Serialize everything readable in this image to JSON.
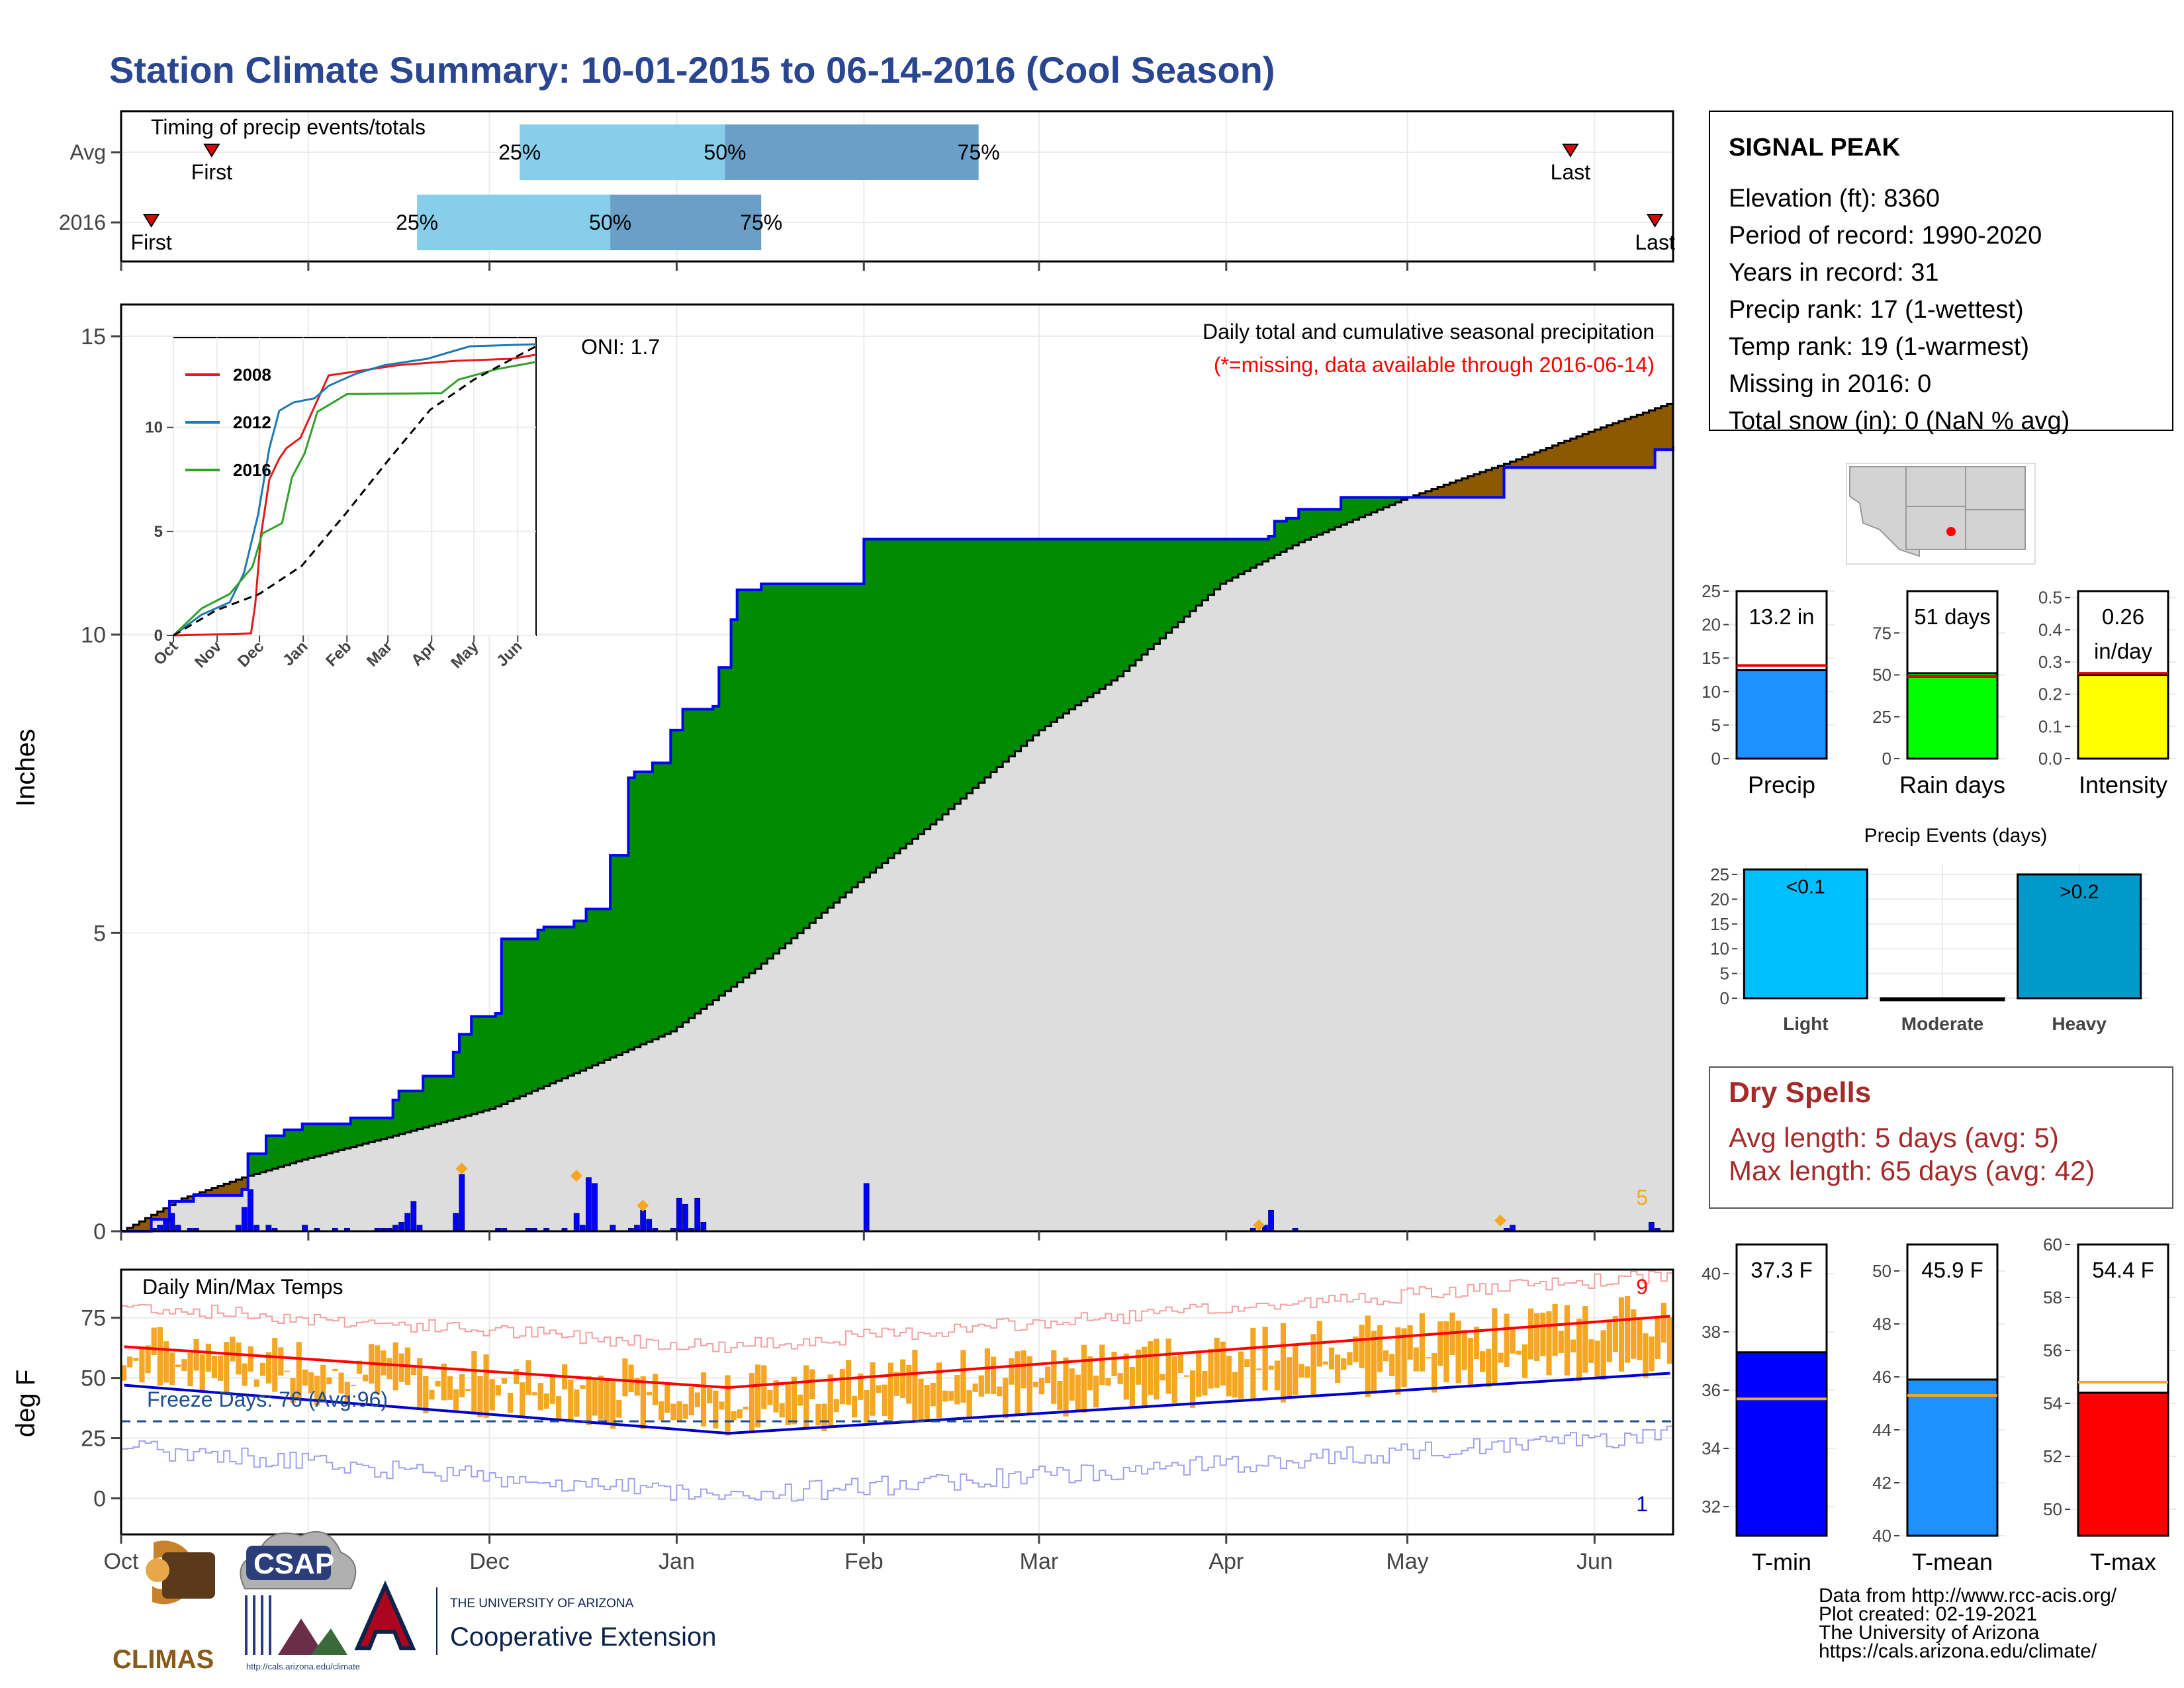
{
  "title": "Station Climate Summary: 10-01-2015 to 06-14-2016 (Cool Season)",
  "colors": {
    "title": "#2B4690",
    "gray_fill": "#DDDDDD",
    "green": "#008B00",
    "brown": "#8B5A00",
    "blue_line": "#0000FF",
    "red": "#FF0000",
    "orange": "#F5A623",
    "light_blue": "#87CEEB",
    "mid_blue": "#6AA0C8",
    "dry_red": "#A52A2A",
    "dark_blue": "#1F4E8C"
  },
  "months": [
    "Oct",
    "Nov",
    "Dec",
    "Jan",
    "Feb",
    "Mar",
    "Apr",
    "May",
    "Jun"
  ],
  "timing": {
    "label": "Timing of precip events/totals",
    "rows": [
      {
        "label": "Avg",
        "first_day": 15,
        "last_day": 240,
        "q25": 66,
        "q50": 100,
        "q75": 142
      },
      {
        "label": "2016",
        "first_day": 5,
        "last_day": 254,
        "q25": 49,
        "q50": 81,
        "q75": 106
      }
    ],
    "first_label": "First",
    "last_label": "Last",
    "q25_label": "25%",
    "q50_label": "50%",
    "q75_label": "75%"
  },
  "station": {
    "name": "SIGNAL PEAK",
    "lines": [
      "Elevation (ft): 8360",
      "Period of record: 1990-2020",
      "Years in record: 31",
      "Precip rank: 17 (1-wettest)",
      "Temp rank: 19 (1-warmest)",
      "Missing in 2016: 0",
      "Total snow (in): 0 (NaN % avg)"
    ]
  },
  "chart_data": [
    {
      "id": "cumulative_precip",
      "type": "area",
      "title": "Daily total and cumulative seasonal precipitation",
      "subtitle": "(*=missing, data available through 2016-06-14)",
      "ylabel": "Inches",
      "ylim": [
        0,
        15
      ],
      "yticks": [
        0,
        5,
        10,
        15
      ],
      "oni": "ONI: 1.7",
      "x_range_days": [
        0,
        257
      ],
      "corner_count": "5",
      "avg_cumulative": [
        [
          0,
          0
        ],
        [
          10,
          0.55
        ],
        [
          20,
          0.9
        ],
        [
          30,
          1.2
        ],
        [
          45,
          1.6
        ],
        [
          61,
          2.05
        ],
        [
          75,
          2.65
        ],
        [
          91,
          3.35
        ],
        [
          105,
          4.4
        ],
        [
          122,
          5.85
        ],
        [
          135,
          6.9
        ],
        [
          152,
          8.4
        ],
        [
          165,
          9.3
        ],
        [
          182,
          10.85
        ],
        [
          195,
          11.55
        ],
        [
          213,
          12.3
        ],
        [
          230,
          12.9
        ],
        [
          243,
          13.4
        ],
        [
          257,
          13.9
        ]
      ],
      "obs_cumulative": [
        [
          0,
          0
        ],
        [
          5,
          0.2
        ],
        [
          8,
          0.5
        ],
        [
          12,
          0.6
        ],
        [
          20,
          0.7
        ],
        [
          21,
          1.3
        ],
        [
          24,
          1.6
        ],
        [
          27,
          1.7
        ],
        [
          30,
          1.8
        ],
        [
          38,
          1.9
        ],
        [
          45,
          2.2
        ],
        [
          46,
          2.35
        ],
        [
          50,
          2.6
        ],
        [
          55,
          3.0
        ],
        [
          56,
          3.3
        ],
        [
          58,
          3.6
        ],
        [
          62,
          3.65
        ],
        [
          63,
          4.9
        ],
        [
          69,
          5.05
        ],
        [
          70,
          5.1
        ],
        [
          75,
          5.2
        ],
        [
          77,
          5.4
        ],
        [
          71,
          5.0
        ],
        [
          72,
          5.05
        ],
        [
          81,
          6.3
        ],
        [
          84,
          7.6
        ],
        [
          85,
          7.7
        ],
        [
          88,
          7.85
        ],
        [
          91,
          8.4
        ],
        [
          93,
          8.75
        ],
        [
          98,
          8.8
        ],
        [
          99,
          9.45
        ],
        [
          101,
          10.25
        ],
        [
          102,
          10.75
        ],
        [
          106,
          10.85
        ],
        [
          114,
          10.85
        ],
        [
          115,
          10.85
        ],
        [
          122,
          10.85
        ],
        [
          123,
          11.6
        ],
        [
          152,
          11.6
        ],
        [
          160,
          11.6
        ],
        [
          170,
          11.6
        ],
        [
          185,
          11.6
        ],
        [
          190,
          11.65
        ],
        [
          191,
          11.9
        ],
        [
          193,
          11.95
        ],
        [
          195,
          12.1
        ],
        [
          202,
          12.3
        ],
        [
          207,
          12.3
        ],
        [
          228,
          12.3
        ],
        [
          229,
          12.8
        ],
        [
          253,
          12.8
        ],
        [
          254,
          13.1
        ],
        [
          257,
          13.15
        ]
      ],
      "daily_bars": [
        [
          5,
          0.05
        ],
        [
          6,
          0.1
        ],
        [
          7,
          0.2
        ],
        [
          8,
          0.3
        ],
        [
          9,
          0.1
        ],
        [
          11,
          0.05
        ],
        [
          12,
          0.05
        ],
        [
          19,
          0.1
        ],
        [
          20,
          0.4
        ],
        [
          21,
          0.7
        ],
        [
          22,
          0.1
        ],
        [
          24,
          0.1
        ],
        [
          25,
          0.05
        ],
        [
          30,
          0.1
        ],
        [
          32,
          0.05
        ],
        [
          35,
          0.05
        ],
        [
          37,
          0.05
        ],
        [
          42,
          0.05
        ],
        [
          43,
          0.05
        ],
        [
          44,
          0.05
        ],
        [
          45,
          0.1
        ],
        [
          46,
          0.15
        ],
        [
          47,
          0.3
        ],
        [
          48,
          0.5
        ],
        [
          49,
          0.1
        ],
        [
          55,
          0.3
        ],
        [
          56,
          0.95
        ],
        [
          62,
          0.05
        ],
        [
          63,
          0.05
        ],
        [
          67,
          0.05
        ],
        [
          68,
          0.05
        ],
        [
          70,
          0.05
        ],
        [
          73,
          0.05
        ],
        [
          75,
          0.3
        ],
        [
          76,
          0.1
        ],
        [
          77,
          0.9
        ],
        [
          78,
          0.8
        ],
        [
          81,
          0.1
        ],
        [
          84,
          0.05
        ],
        [
          85,
          0.1
        ],
        [
          86,
          0.35
        ],
        [
          87,
          0.2
        ],
        [
          88,
          0.05
        ],
        [
          91,
          0.05
        ],
        [
          92,
          0.55
        ],
        [
          93,
          0.45
        ],
        [
          94,
          0.05
        ],
        [
          95,
          0.55
        ],
        [
          96,
          0.15
        ],
        [
          123,
          0.8
        ],
        [
          187,
          0.05
        ],
        [
          189,
          0.1
        ],
        [
          190,
          0.35
        ],
        [
          194,
          0.05
        ],
        [
          229,
          0.05
        ],
        [
          230,
          0.1
        ],
        [
          253,
          0.15
        ],
        [
          254,
          0.05
        ]
      ],
      "record_diamonds": [
        [
          56,
          1.05
        ],
        [
          75,
          0.93
        ],
        [
          86,
          0.43
        ],
        [
          188,
          0.1
        ],
        [
          228,
          0.18
        ]
      ]
    },
    {
      "id": "inset_cumulative",
      "type": "line",
      "ylim": [
        0,
        14
      ],
      "yticks": [
        0,
        5,
        10
      ],
      "xticks": [
        "Oct",
        "Nov",
        "Dec",
        "Jan",
        "Feb",
        "Mar",
        "Apr",
        "May",
        "Jun"
      ],
      "series": [
        {
          "name": "2008",
          "color": "#E31A1C",
          "points": [
            [
              0,
              0
            ],
            [
              55,
              0.1
            ],
            [
              58,
              1.5
            ],
            [
              62,
              4.8
            ],
            [
              68,
              7.5
            ],
            [
              75,
              8.5
            ],
            [
              80,
              9.0
            ],
            [
              90,
              9.5
            ],
            [
              100,
              11.0
            ],
            [
              110,
              12.5
            ],
            [
              130,
              12.7
            ],
            [
              160,
              13.0
            ],
            [
              200,
              13.2
            ],
            [
              240,
              13.3
            ],
            [
              257,
              13.5
            ]
          ]
        },
        {
          "name": "2012",
          "color": "#1F78B4",
          "points": [
            [
              0,
              0
            ],
            [
              20,
              1.0
            ],
            [
              40,
              1.6
            ],
            [
              50,
              3.0
            ],
            [
              60,
              5.8
            ],
            [
              68,
              9.0
            ],
            [
              75,
              10.8
            ],
            [
              85,
              11.2
            ],
            [
              100,
              11.4
            ],
            [
              110,
              12.0
            ],
            [
              130,
              12.6
            ],
            [
              150,
              13.0
            ],
            [
              180,
              13.3
            ],
            [
              210,
              13.9
            ],
            [
              257,
              14.0
            ]
          ]
        },
        {
          "name": "2016",
          "color": "#33A02C",
          "points": [
            [
              0,
              0
            ],
            [
              20,
              1.3
            ],
            [
              40,
              2.0
            ],
            [
              56,
              3.3
            ],
            [
              63,
              4.9
            ],
            [
              77,
              5.4
            ],
            [
              84,
              7.6
            ],
            [
              93,
              8.75
            ],
            [
              102,
              10.75
            ],
            [
              123,
              11.6
            ],
            [
              190,
              11.65
            ],
            [
              202,
              12.3
            ],
            [
              229,
              12.8
            ],
            [
              257,
              13.15
            ]
          ]
        },
        {
          "name": "",
          "color": "#000000",
          "dashed": true,
          "points": [
            [
              0,
              0
            ],
            [
              30,
              1.2
            ],
            [
              61,
              2.0
            ],
            [
              91,
              3.35
            ],
            [
              122,
              5.85
            ],
            [
              152,
              8.4
            ],
            [
              182,
              10.85
            ],
            [
              213,
              12.3
            ],
            [
              243,
              13.4
            ],
            [
              257,
              13.9
            ]
          ]
        }
      ]
    },
    {
      "id": "daily_temps",
      "type": "line",
      "title": "Daily Min/Max Temps",
      "ylabel": "deg F",
      "ylim": [
        -15,
        95
      ],
      "yticks": [
        0,
        25,
        50,
        75
      ],
      "freeze_line": 32,
      "freeze_label": "Freeze Days: 76 (Avg:96)",
      "max_count": "9",
      "min_count": "1"
    },
    {
      "id": "precip_stats",
      "type": "bar",
      "panels": [
        {
          "category": "Precip",
          "label_lines": [
            "13.2 in"
          ],
          "value": 13.2,
          "avg": 13.9,
          "ylim": [
            0,
            25
          ],
          "yticks": [
            0,
            5,
            10,
            15,
            20,
            25
          ],
          "color": "#1E90FF"
        },
        {
          "category": "Rain days",
          "label_lines": [
            "51 days"
          ],
          "value": 51,
          "avg": 49,
          "ylim": [
            0,
            100
          ],
          "yticks": [
            0,
            25,
            50,
            75
          ],
          "color": "#00FF00"
        },
        {
          "category": "Intensity",
          "label_lines": [
            "0.26",
            "in/day"
          ],
          "value": 0.26,
          "avg": 0.265,
          "ylim": [
            0,
            0.52
          ],
          "yticks": [
            0.0,
            0.1,
            0.2,
            0.3,
            0.4,
            0.5
          ],
          "color": "#FFFF00"
        }
      ]
    },
    {
      "id": "precip_events",
      "type": "bar",
      "title": "Precip Events (days)",
      "categories": [
        "Light",
        "Moderate",
        "Heavy"
      ],
      "values": [
        26,
        0,
        25
      ],
      "bar_labels": [
        "<0.1",
        "",
        ">0.2"
      ],
      "colors": [
        "#00BFFF",
        "#00BFFF",
        "#0099CC"
      ],
      "ylim": [
        0,
        27
      ],
      "yticks": [
        0,
        5,
        10,
        15,
        20,
        25
      ]
    },
    {
      "id": "temp_stats",
      "type": "bar",
      "panels": [
        {
          "category": "T-min",
          "label": "37.3 F",
          "value": 37.3,
          "avg": 35.7,
          "ylim": [
            31,
            41
          ],
          "yticks": [
            32,
            34,
            36,
            38,
            40
          ],
          "color": "#0000FF"
        },
        {
          "category": "T-mean",
          "label": "45.9 F",
          "value": 45.9,
          "avg": 45.3,
          "ylim": [
            40,
            51
          ],
          "yticks": [
            40,
            42,
            44,
            46,
            48,
            50
          ],
          "color": "#1E90FF"
        },
        {
          "category": "T-max",
          "label": "54.4 F",
          "value": 54.4,
          "avg": 54.8,
          "ylim": [
            49,
            60
          ],
          "yticks": [
            50,
            52,
            54,
            56,
            58,
            60
          ],
          "color": "#FF0000"
        }
      ]
    }
  ],
  "dry_spells": {
    "title": "Dry Spells",
    "avg_line": "Avg length: 5 days (avg: 5)",
    "max_line": "Max length: 65 days (avg: 42)"
  },
  "footer": {
    "lines": [
      "Data from http://www.rcc-acis.org/",
      "Plot created: 02-19-2021",
      "The University of Arizona",
      "https://cals.arizona.edu/climate/"
    ]
  },
  "logos": {
    "climas": "CLIMAS",
    "csap": "CSAP",
    "csap_url": "http://cals.arizona.edu/climate",
    "ua_top": "THE UNIVERSITY OF ARIZONA",
    "ua_name": "Cooperative Extension"
  }
}
